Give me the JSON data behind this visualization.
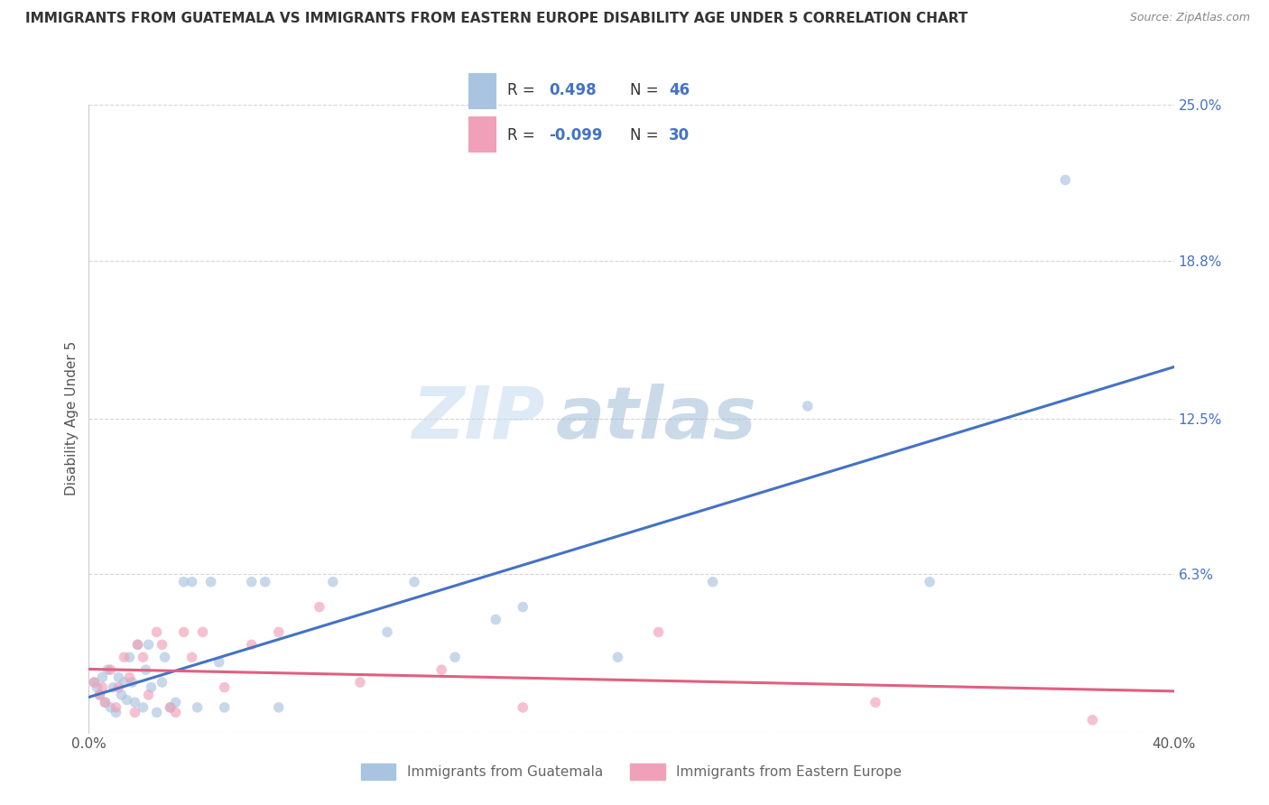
{
  "title": "IMMIGRANTS FROM GUATEMALA VS IMMIGRANTS FROM EASTERN EUROPE DISABILITY AGE UNDER 5 CORRELATION CHART",
  "source": "Source: ZipAtlas.com",
  "ylabel": "Disability Age Under 5",
  "xlim": [
    0.0,
    0.4
  ],
  "ylim": [
    0.0,
    0.25
  ],
  "xticks": [
    0.0,
    0.4
  ],
  "xticklabels": [
    "0.0%",
    "40.0%"
  ],
  "ytick_positions": [
    0.0,
    0.063,
    0.125,
    0.188,
    0.25
  ],
  "ytick_labels": [
    "",
    "6.3%",
    "12.5%",
    "18.8%",
    "25.0%"
  ],
  "guatemala_color": "#a8c4e0",
  "eastern_europe_color": "#f0a0b8",
  "trendline_guatemala_color": "#4472c4",
  "trendline_eastern_europe_color": "#e06080",
  "R_guatemala": "0.498",
  "N_guatemala": "46",
  "R_eastern_europe": "-0.099",
  "N_eastern_europe": "30",
  "legend_label_guatemala": "Immigrants from Guatemala",
  "legend_label_eastern_europe": "Immigrants from Eastern Europe",
  "watermark_zip": "ZIP",
  "watermark_atlas": "atlas",
  "guatemala_x": [
    0.002,
    0.003,
    0.004,
    0.005,
    0.006,
    0.007,
    0.008,
    0.009,
    0.01,
    0.011,
    0.012,
    0.013,
    0.014,
    0.015,
    0.016,
    0.017,
    0.018,
    0.02,
    0.021,
    0.022,
    0.023,
    0.025,
    0.027,
    0.028,
    0.03,
    0.032,
    0.035,
    0.038,
    0.04,
    0.045,
    0.048,
    0.05,
    0.06,
    0.065,
    0.07,
    0.09,
    0.11,
    0.12,
    0.135,
    0.15,
    0.16,
    0.195,
    0.23,
    0.265,
    0.31,
    0.36
  ],
  "guatemala_y": [
    0.02,
    0.018,
    0.015,
    0.022,
    0.012,
    0.025,
    0.01,
    0.018,
    0.008,
    0.022,
    0.015,
    0.02,
    0.013,
    0.03,
    0.02,
    0.012,
    0.035,
    0.01,
    0.025,
    0.035,
    0.018,
    0.008,
    0.02,
    0.03,
    0.01,
    0.012,
    0.06,
    0.06,
    0.01,
    0.06,
    0.028,
    0.01,
    0.06,
    0.06,
    0.01,
    0.06,
    0.04,
    0.06,
    0.03,
    0.045,
    0.05,
    0.03,
    0.06,
    0.13,
    0.06,
    0.22
  ],
  "eastern_europe_x": [
    0.002,
    0.004,
    0.005,
    0.006,
    0.008,
    0.01,
    0.011,
    0.013,
    0.015,
    0.017,
    0.018,
    0.02,
    0.022,
    0.025,
    0.027,
    0.03,
    0.032,
    0.035,
    0.038,
    0.042,
    0.05,
    0.06,
    0.07,
    0.085,
    0.1,
    0.13,
    0.16,
    0.21,
    0.29,
    0.37
  ],
  "eastern_europe_y": [
    0.02,
    0.015,
    0.018,
    0.012,
    0.025,
    0.01,
    0.018,
    0.03,
    0.022,
    0.008,
    0.035,
    0.03,
    0.015,
    0.04,
    0.035,
    0.01,
    0.008,
    0.04,
    0.03,
    0.04,
    0.018,
    0.035,
    0.04,
    0.05,
    0.02,
    0.025,
    0.01,
    0.04,
    0.012,
    0.005
  ],
  "background_color": "#ffffff",
  "grid_color": "#cccccc",
  "title_fontsize": 11,
  "axis_label_fontsize": 11,
  "tick_fontsize": 11,
  "marker_size": 70,
  "marker_alpha": 0.65,
  "trendline_lw": 2.2
}
